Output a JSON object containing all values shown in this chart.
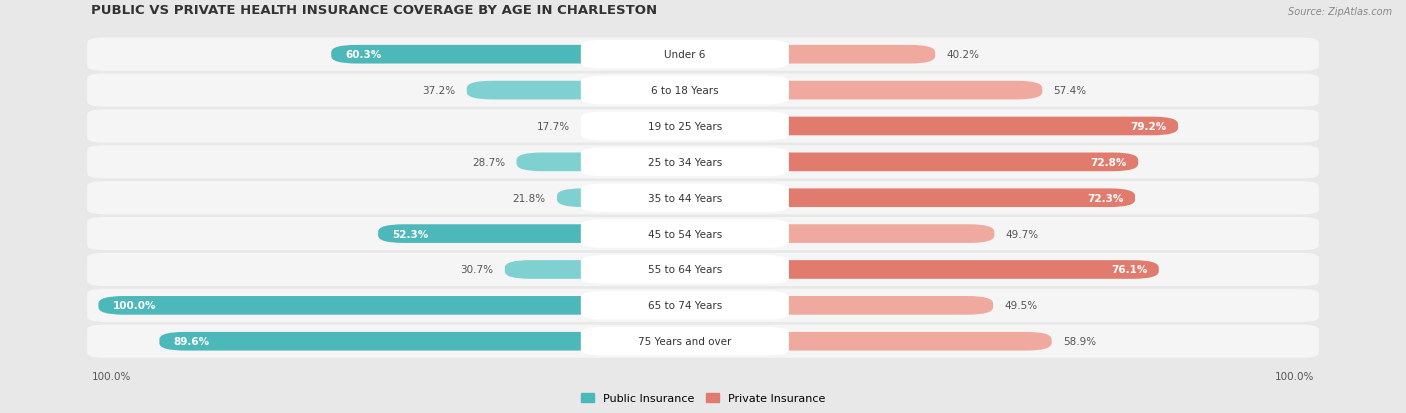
{
  "title": "PUBLIC VS PRIVATE HEALTH INSURANCE COVERAGE BY AGE IN CHARLESTON",
  "source": "Source: ZipAtlas.com",
  "categories": [
    "Under 6",
    "6 to 18 Years",
    "19 to 25 Years",
    "25 to 34 Years",
    "35 to 44 Years",
    "45 to 54 Years",
    "55 to 64 Years",
    "65 to 74 Years",
    "75 Years and over"
  ],
  "public_values": [
    60.3,
    37.2,
    17.7,
    28.7,
    21.8,
    52.3,
    30.7,
    100.0,
    89.6
  ],
  "private_values": [
    40.2,
    57.4,
    79.2,
    72.8,
    72.3,
    49.7,
    76.1,
    49.5,
    58.9
  ],
  "public_color": "#4db8ba",
  "private_color": "#e07b6e",
  "public_light": "#7fd0d1",
  "private_light": "#f0a99f",
  "bg_color": "#e8e8e8",
  "row_color": "#f5f5f5",
  "title_color": "#333333",
  "label_font_color": "#444444",
  "figsize": [
    14.06,
    4.14
  ],
  "dpi": 100,
  "pub_label_inside_threshold": 50,
  "priv_label_inside_threshold": 60
}
